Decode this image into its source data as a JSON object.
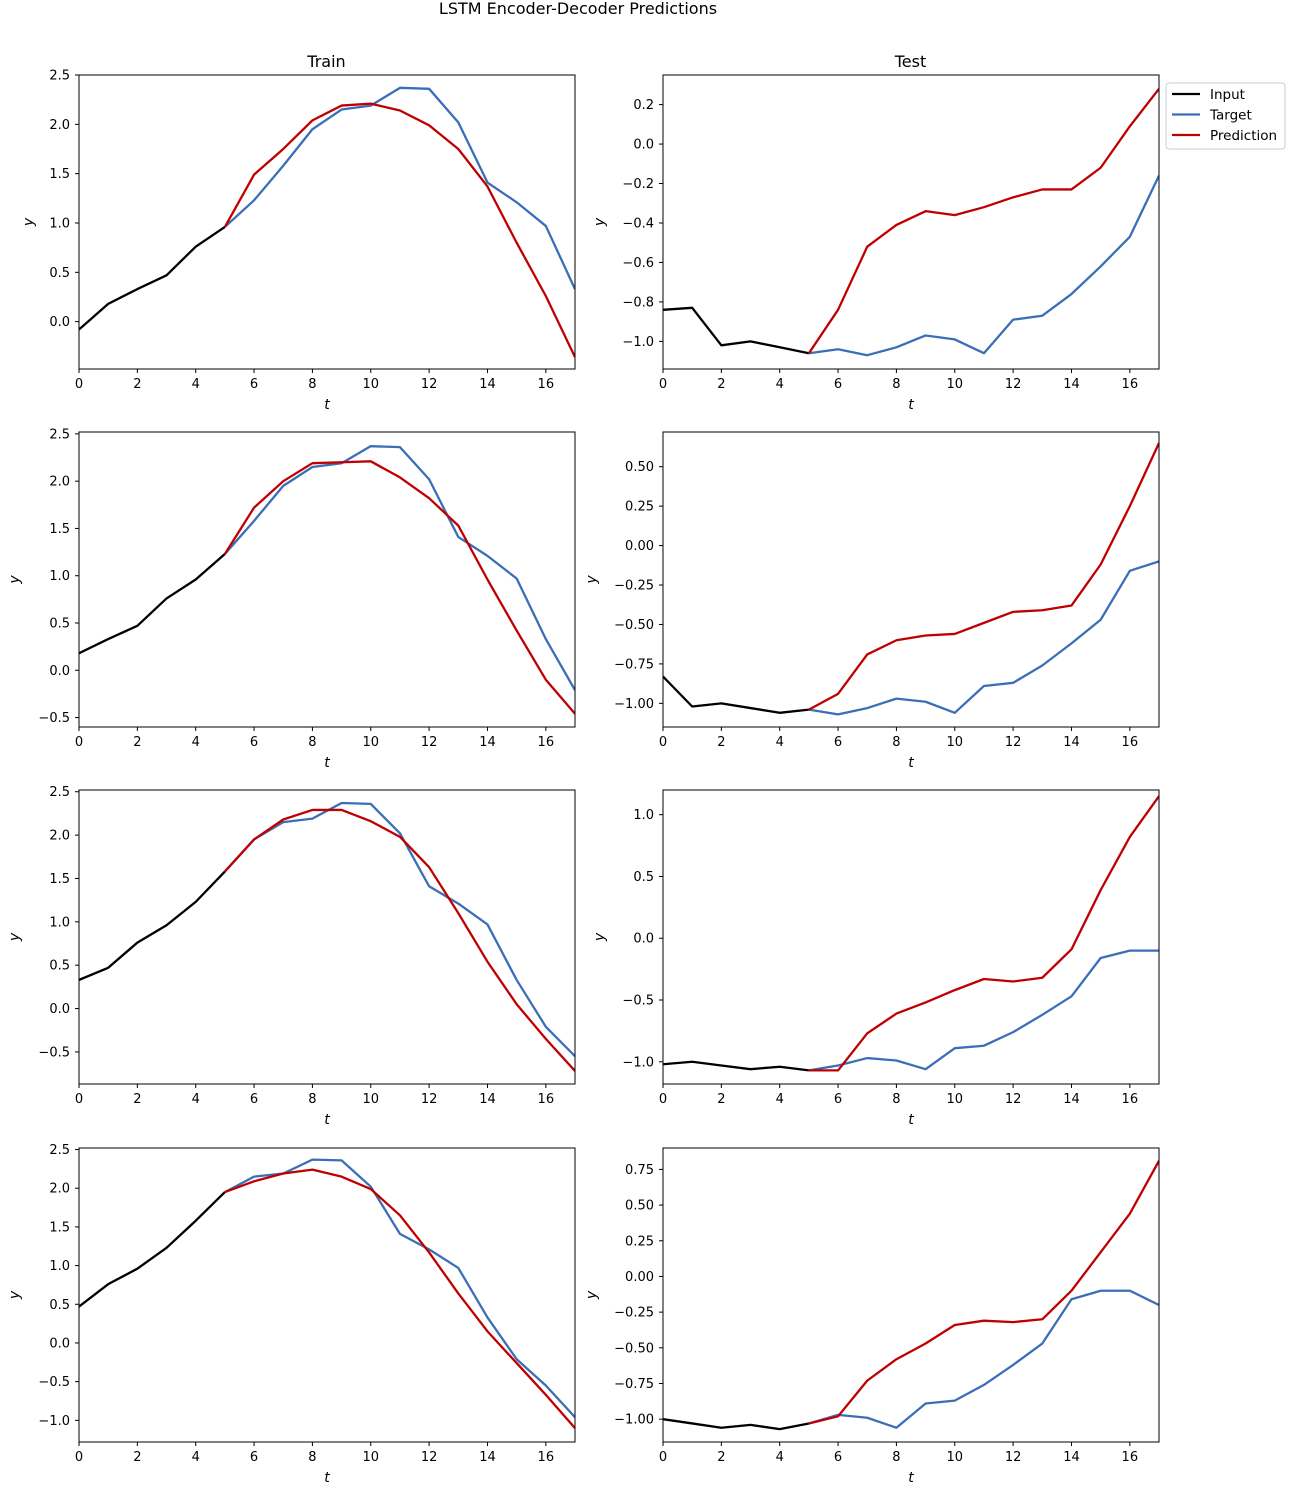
{
  "figure": {
    "title": "LSTM Encoder-Decoder Predictions",
    "column_titles": [
      "Train",
      "Test"
    ],
    "legend": [
      "Input",
      "Target",
      "Prediction"
    ],
    "colors": {
      "Input": "#000000",
      "Target": "#3a6fb8",
      "Prediction": "#c00000"
    },
    "legend_placement": "upper-right, outside the top-right panel"
  },
  "chart_data": [
    {
      "type": "line",
      "row": 0,
      "column": "Train",
      "xlabel": "t",
      "ylabel": "y",
      "xlim": [
        0,
        17
      ],
      "ylim": [
        -0.48,
        2.5
      ],
      "xticks": [
        0,
        2,
        4,
        6,
        8,
        10,
        12,
        14,
        16
      ],
      "yticks": [
        0.0,
        0.5,
        1.0,
        1.5,
        2.0,
        2.5
      ],
      "ytick_labels": [
        "0.0",
        "0.5",
        "1.0",
        "1.5",
        "2.0",
        "2.5"
      ],
      "series": [
        {
          "name": "Input",
          "x": [
            0,
            1,
            2,
            3,
            4,
            5
          ],
          "y": [
            -0.08,
            0.18,
            0.33,
            0.47,
            0.76,
            0.96
          ]
        },
        {
          "name": "Target",
          "x": [
            5,
            6,
            7,
            8,
            9,
            10,
            11,
            12,
            13,
            14,
            15,
            16,
            17
          ],
          "y": [
            0.96,
            1.23,
            1.58,
            1.95,
            2.15,
            2.19,
            2.37,
            2.36,
            2.02,
            1.41,
            1.21,
            0.97,
            0.33
          ]
        },
        {
          "name": "Prediction",
          "x": [
            5,
            6,
            7,
            8,
            9,
            10,
            11,
            12,
            13,
            14,
            15,
            16,
            17
          ],
          "y": [
            0.96,
            1.49,
            1.75,
            2.04,
            2.19,
            2.21,
            2.14,
            1.99,
            1.75,
            1.37,
            0.8,
            0.26,
            -0.36
          ]
        }
      ]
    },
    {
      "type": "line",
      "row": 0,
      "column": "Test",
      "xlabel": "t",
      "ylabel": "y",
      "xlim": [
        0,
        17
      ],
      "ylim": [
        -1.14,
        0.35
      ],
      "xticks": [
        0,
        2,
        4,
        6,
        8,
        10,
        12,
        14,
        16
      ],
      "yticks": [
        -1.0,
        -0.8,
        -0.6,
        -0.4,
        -0.2,
        0.0,
        0.2
      ],
      "ytick_labels": [
        "−1.0",
        "−0.8",
        "−0.6",
        "−0.4",
        "−0.2",
        "0.0",
        "0.2"
      ],
      "series": [
        {
          "name": "Input",
          "x": [
            0,
            1,
            2,
            3,
            4,
            5
          ],
          "y": [
            -0.84,
            -0.83,
            -1.02,
            -1.0,
            -1.03,
            -1.06
          ]
        },
        {
          "name": "Target",
          "x": [
            5,
            6,
            7,
            8,
            9,
            10,
            11,
            12,
            13,
            14,
            15,
            16,
            17
          ],
          "y": [
            -1.06,
            -1.04,
            -1.07,
            -1.03,
            -0.97,
            -0.99,
            -1.06,
            -0.89,
            -0.87,
            -0.76,
            -0.62,
            -0.47,
            -0.16
          ]
        },
        {
          "name": "Prediction",
          "x": [
            5,
            6,
            7,
            8,
            9,
            10,
            11,
            12,
            13,
            14,
            15,
            16,
            17
          ],
          "y": [
            -1.06,
            -0.84,
            -0.52,
            -0.41,
            -0.34,
            -0.36,
            -0.32,
            -0.27,
            -0.23,
            -0.23,
            -0.12,
            0.09,
            0.28
          ]
        }
      ]
    },
    {
      "type": "line",
      "row": 1,
      "column": "Train",
      "xlabel": "t",
      "ylabel": "y",
      "xlim": [
        0,
        17
      ],
      "ylim": [
        -0.6,
        2.52
      ],
      "xticks": [
        0,
        2,
        4,
        6,
        8,
        10,
        12,
        14,
        16
      ],
      "yticks": [
        -0.5,
        0.0,
        0.5,
        1.0,
        1.5,
        2.0,
        2.5
      ],
      "ytick_labels": [
        "−0.5",
        "0.0",
        "0.5",
        "1.0",
        "1.5",
        "2.0",
        "2.5"
      ],
      "series": [
        {
          "name": "Input",
          "x": [
            0,
            1,
            2,
            3,
            4,
            5
          ],
          "y": [
            0.18,
            0.33,
            0.47,
            0.76,
            0.96,
            1.23
          ]
        },
        {
          "name": "Target",
          "x": [
            5,
            6,
            7,
            8,
            9,
            10,
            11,
            12,
            13,
            14,
            15,
            16,
            17
          ],
          "y": [
            1.23,
            1.58,
            1.95,
            2.15,
            2.19,
            2.37,
            2.36,
            2.02,
            1.41,
            1.21,
            0.97,
            0.33,
            -0.21
          ]
        },
        {
          "name": "Prediction",
          "x": [
            5,
            6,
            7,
            8,
            9,
            10,
            11,
            12,
            13,
            14,
            15,
            16,
            17
          ],
          "y": [
            1.23,
            1.72,
            2.0,
            2.19,
            2.2,
            2.21,
            2.04,
            1.82,
            1.53,
            0.96,
            0.42,
            -0.1,
            -0.46
          ]
        }
      ]
    },
    {
      "type": "line",
      "row": 1,
      "column": "Test",
      "xlabel": "t",
      "ylabel": "y",
      "xlim": [
        0,
        17
      ],
      "ylim": [
        -1.15,
        0.72
      ],
      "xticks": [
        0,
        2,
        4,
        6,
        8,
        10,
        12,
        14,
        16
      ],
      "yticks": [
        -1.0,
        -0.75,
        -0.5,
        -0.25,
        0.0,
        0.25,
        0.5
      ],
      "ytick_labels": [
        "−1.00",
        "−0.75",
        "−0.50",
        "−0.25",
        "0.00",
        "0.25",
        "0.50"
      ],
      "series": [
        {
          "name": "Input",
          "x": [
            0,
            1,
            2,
            3,
            4,
            5
          ],
          "y": [
            -0.83,
            -1.02,
            -1.0,
            -1.03,
            -1.06,
            -1.04
          ]
        },
        {
          "name": "Target",
          "x": [
            5,
            6,
            7,
            8,
            9,
            10,
            11,
            12,
            13,
            14,
            15,
            16,
            17
          ],
          "y": [
            -1.04,
            -1.07,
            -1.03,
            -0.97,
            -0.99,
            -1.06,
            -0.89,
            -0.87,
            -0.76,
            -0.62,
            -0.47,
            -0.16,
            -0.1
          ]
        },
        {
          "name": "Prediction",
          "x": [
            5,
            6,
            7,
            8,
            9,
            10,
            11,
            12,
            13,
            14,
            15,
            16,
            17
          ],
          "y": [
            -1.04,
            -0.94,
            -0.69,
            -0.6,
            -0.57,
            -0.56,
            -0.49,
            -0.42,
            -0.41,
            -0.38,
            -0.12,
            0.25,
            0.65
          ]
        }
      ]
    },
    {
      "type": "line",
      "row": 2,
      "column": "Train",
      "xlabel": "t",
      "ylabel": "y",
      "xlim": [
        0,
        17
      ],
      "ylim": [
        -0.87,
        2.52
      ],
      "xticks": [
        0,
        2,
        4,
        6,
        8,
        10,
        12,
        14,
        16
      ],
      "yticks": [
        -0.5,
        0.0,
        0.5,
        1.0,
        1.5,
        2.0,
        2.5
      ],
      "ytick_labels": [
        "−0.5",
        "0.0",
        "0.5",
        "1.0",
        "1.5",
        "2.0",
        "2.5"
      ],
      "series": [
        {
          "name": "Input",
          "x": [
            0,
            1,
            2,
            3,
            4,
            5
          ],
          "y": [
            0.33,
            0.47,
            0.76,
            0.96,
            1.23,
            1.58
          ]
        },
        {
          "name": "Target",
          "x": [
            5,
            6,
            7,
            8,
            9,
            10,
            11,
            12,
            13,
            14,
            15,
            16,
            17
          ],
          "y": [
            1.58,
            1.95,
            2.15,
            2.19,
            2.37,
            2.36,
            2.02,
            1.41,
            1.21,
            0.97,
            0.33,
            -0.21,
            -0.55
          ]
        },
        {
          "name": "Prediction",
          "x": [
            5,
            6,
            7,
            8,
            9,
            10,
            11,
            12,
            13,
            14,
            15,
            16,
            17
          ],
          "y": [
            1.58,
            1.95,
            2.18,
            2.29,
            2.29,
            2.16,
            1.98,
            1.63,
            1.1,
            0.54,
            0.05,
            -0.35,
            -0.72
          ]
        }
      ]
    },
    {
      "type": "line",
      "row": 2,
      "column": "Test",
      "xlabel": "t",
      "ylabel": "y",
      "xlim": [
        0,
        17
      ],
      "ylim": [
        -1.18,
        1.2
      ],
      "xticks": [
        0,
        2,
        4,
        6,
        8,
        10,
        12,
        14,
        16
      ],
      "yticks": [
        -1.0,
        -0.5,
        0.0,
        0.5,
        1.0
      ],
      "ytick_labels": [
        "−1.0",
        "−0.5",
        "0.0",
        "0.5",
        "1.0"
      ],
      "series": [
        {
          "name": "Input",
          "x": [
            0,
            1,
            2,
            3,
            4,
            5
          ],
          "y": [
            -1.02,
            -1.0,
            -1.03,
            -1.06,
            -1.04,
            -1.07
          ]
        },
        {
          "name": "Target",
          "x": [
            5,
            6,
            7,
            8,
            9,
            10,
            11,
            12,
            13,
            14,
            15,
            16,
            17
          ],
          "y": [
            -1.07,
            -1.03,
            -0.97,
            -0.99,
            -1.06,
            -0.89,
            -0.87,
            -0.76,
            -0.62,
            -0.47,
            -0.16,
            -0.1,
            -0.1
          ]
        },
        {
          "name": "Prediction",
          "x": [
            5,
            6,
            7,
            8,
            9,
            10,
            11,
            12,
            13,
            14,
            15,
            16,
            17
          ],
          "y": [
            -1.07,
            -1.07,
            -0.77,
            -0.61,
            -0.52,
            -0.42,
            -0.33,
            -0.35,
            -0.32,
            -0.09,
            0.39,
            0.82,
            1.15
          ]
        }
      ]
    },
    {
      "type": "line",
      "row": 3,
      "column": "Train",
      "xlabel": "t",
      "ylabel": "y",
      "xlim": [
        0,
        17
      ],
      "ylim": [
        -1.28,
        2.52
      ],
      "xticks": [
        0,
        2,
        4,
        6,
        8,
        10,
        12,
        14,
        16
      ],
      "yticks": [
        -1.0,
        -0.5,
        0.0,
        0.5,
        1.0,
        1.5,
        2.0,
        2.5
      ],
      "ytick_labels": [
        "−1.0",
        "−0.5",
        "0.0",
        "0.5",
        "1.0",
        "1.5",
        "2.0",
        "2.5"
      ],
      "series": [
        {
          "name": "Input",
          "x": [
            0,
            1,
            2,
            3,
            4,
            5
          ],
          "y": [
            0.47,
            0.76,
            0.96,
            1.23,
            1.58,
            1.95
          ]
        },
        {
          "name": "Target",
          "x": [
            5,
            6,
            7,
            8,
            9,
            10,
            11,
            12,
            13,
            14,
            15,
            16,
            17
          ],
          "y": [
            1.95,
            2.15,
            2.19,
            2.37,
            2.36,
            2.02,
            1.41,
            1.21,
            0.97,
            0.33,
            -0.21,
            -0.55,
            -0.96
          ]
        },
        {
          "name": "Prediction",
          "x": [
            5,
            6,
            7,
            8,
            9,
            10,
            11,
            12,
            13,
            14,
            15,
            16,
            17
          ],
          "y": [
            1.95,
            2.09,
            2.19,
            2.24,
            2.15,
            1.99,
            1.65,
            1.17,
            0.64,
            0.15,
            -0.26,
            -0.67,
            -1.1
          ]
        }
      ]
    },
    {
      "type": "line",
      "row": 3,
      "column": "Test",
      "xlabel": "t",
      "ylabel": "y",
      "xlim": [
        0,
        17
      ],
      "ylim": [
        -1.16,
        0.9
      ],
      "xticks": [
        0,
        2,
        4,
        6,
        8,
        10,
        12,
        14,
        16
      ],
      "yticks": [
        -1.0,
        -0.75,
        -0.5,
        -0.25,
        0.0,
        0.25,
        0.5,
        0.75
      ],
      "ytick_labels": [
        "−1.00",
        "−0.75",
        "−0.50",
        "−0.25",
        "0.00",
        "0.25",
        "0.50",
        "0.75"
      ],
      "series": [
        {
          "name": "Input",
          "x": [
            0,
            1,
            2,
            3,
            4,
            5
          ],
          "y": [
            -1.0,
            -1.03,
            -1.06,
            -1.04,
            -1.07,
            -1.03
          ]
        },
        {
          "name": "Target",
          "x": [
            5,
            6,
            7,
            8,
            9,
            10,
            11,
            12,
            13,
            14,
            15,
            16,
            17
          ],
          "y": [
            -1.03,
            -0.97,
            -0.99,
            -1.06,
            -0.89,
            -0.87,
            -0.76,
            -0.62,
            -0.47,
            -0.16,
            -0.1,
            -0.1,
            -0.2
          ]
        },
        {
          "name": "Prediction",
          "x": [
            5,
            6,
            7,
            8,
            9,
            10,
            11,
            12,
            13,
            14,
            15,
            16,
            17
          ],
          "y": [
            -1.03,
            -0.98,
            -0.73,
            -0.58,
            -0.47,
            -0.34,
            -0.31,
            -0.32,
            -0.3,
            -0.1,
            0.17,
            0.44,
            0.81
          ]
        }
      ]
    }
  ]
}
